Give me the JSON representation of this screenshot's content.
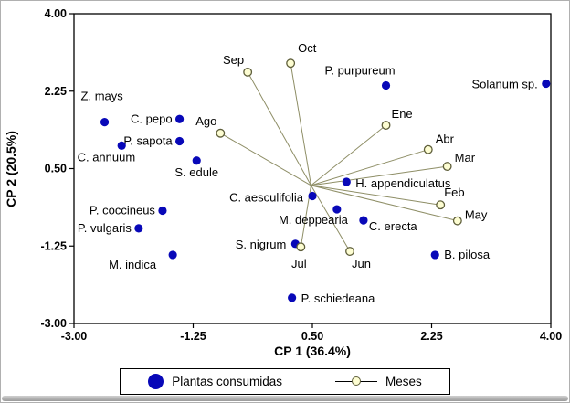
{
  "legend": {
    "plants_label": "Plantas consumidas",
    "months_label": "Meses"
  },
  "colors": {
    "plant": "#0808b8",
    "month_fill": "#fdfdd2",
    "month_stroke": "#5e5e3a",
    "vector_line": "#8e8e66",
    "axis": "#000000"
  },
  "chart_data": {
    "type": "scatter",
    "subtype": "pca-biplot",
    "title": "",
    "xlabel": "CP 1 (36.4%)",
    "ylabel": "CP 2 (20.5%)",
    "xlim": [
      -3,
      4
    ],
    "ylim": [
      -3,
      4
    ],
    "grid": false,
    "legend_position": "bottom",
    "xticks": [
      {
        "value": -3,
        "label": "-3.00"
      },
      {
        "value": -1.25,
        "label": "-1.25"
      },
      {
        "value": 0.5,
        "label": "0.50"
      },
      {
        "value": 2.25,
        "label": "2.25"
      },
      {
        "value": 4,
        "label": "4.00"
      }
    ],
    "yticks": [
      {
        "value": -3,
        "label": "-3.00"
      },
      {
        "value": -1.25,
        "label": "-1.25"
      },
      {
        "value": 0.5,
        "label": "0.50"
      },
      {
        "value": 2.25,
        "label": "2.25"
      },
      {
        "value": 4,
        "label": "4.00"
      }
    ],
    "vector_origin": {
      "x": 0.48,
      "y": 0.12
    },
    "series": [
      {
        "name": "Plantas consumidas",
        "marker": "filled-circle",
        "lines_from_origin": false,
        "points": [
          {
            "label": "Z. mays",
            "x": -2.55,
            "y": 1.55,
            "anchor": "start",
            "dx": -26,
            "dy": -24
          },
          {
            "label": "C. pepo",
            "x": -1.45,
            "y": 1.62,
            "anchor": "end",
            "dx": -8,
            "dy": 4
          },
          {
            "label": "P. sapota",
            "x": -1.45,
            "y": 1.12,
            "anchor": "end",
            "dx": -8,
            "dy": 4
          },
          {
            "label": "C. annuum",
            "x": -2.3,
            "y": 1.02,
            "anchor": "end",
            "dx": 15,
            "dy": 17
          },
          {
            "label": "S. edule",
            "x": -1.2,
            "y": 0.68,
            "anchor": "middle",
            "dx": 0,
            "dy": 17
          },
          {
            "label": "P. coccineus",
            "x": -1.7,
            "y": -0.45,
            "anchor": "end",
            "dx": -8,
            "dy": 4
          },
          {
            "label": "P. vulgaris",
            "x": -2.05,
            "y": -0.85,
            "anchor": "end",
            "dx": -8,
            "dy": 4
          },
          {
            "label": "M. indica",
            "x": -1.55,
            "y": -1.45,
            "anchor": "end",
            "dx": -18,
            "dy": 15
          },
          {
            "label": "C. aesculifolia",
            "x": 0.5,
            "y": -0.12,
            "anchor": "end",
            "dx": -10,
            "dy": 6
          },
          {
            "label": "H. appendiculatus",
            "x": 1.0,
            "y": 0.2,
            "anchor": "start",
            "dx": 10,
            "dy": 6
          },
          {
            "label": "M. deppearia",
            "x": 0.86,
            "y": -0.42,
            "anchor": "end",
            "dx": 12,
            "dy": 16
          },
          {
            "label": "C. erecta",
            "x": 1.25,
            "y": -0.67,
            "anchor": "start",
            "dx": 6,
            "dy": 11
          },
          {
            "label": "S. nigrum",
            "x": 0.25,
            "y": -1.2,
            "anchor": "end",
            "dx": -10,
            "dy": 5
          },
          {
            "label": "B. pilosa",
            "x": 2.3,
            "y": -1.45,
            "anchor": "start",
            "dx": 10,
            "dy": 4
          },
          {
            "label": "P. schiedeana",
            "x": 0.2,
            "y": -2.42,
            "anchor": "start",
            "dx": 10,
            "dy": 5
          },
          {
            "label": "P. purpureum",
            "x": 1.58,
            "y": 2.38,
            "anchor": "end",
            "dx": 10,
            "dy": -12
          },
          {
            "label": "Solanum sp.",
            "x": 3.93,
            "y": 2.42,
            "anchor": "end",
            "dx": -9,
            "dy": 5
          }
        ]
      },
      {
        "name": "Meses",
        "marker": "open-circle",
        "lines_from_origin": true,
        "points": [
          {
            "label": "Ene",
            "x": 1.58,
            "y": 1.48,
            "anchor": "start",
            "dx": 6,
            "dy": -8
          },
          {
            "label": "Feb",
            "x": 2.38,
            "y": -0.32,
            "anchor": "start",
            "dx": 4,
            "dy": -9
          },
          {
            "label": "Mar",
            "x": 2.48,
            "y": 0.55,
            "anchor": "start",
            "dx": 8,
            "dy": -5
          },
          {
            "label": "Abr",
            "x": 2.2,
            "y": 0.93,
            "anchor": "start",
            "dx": 8,
            "dy": -7
          },
          {
            "label": "May",
            "x": 2.63,
            "y": -0.68,
            "anchor": "start",
            "dx": 8,
            "dy": -2
          },
          {
            "label": "Jun",
            "x": 1.05,
            "y": -1.37,
            "anchor": "start",
            "dx": 2,
            "dy": 18
          },
          {
            "label": "Jul",
            "x": 0.33,
            "y": -1.27,
            "anchor": "middle",
            "dx": -2,
            "dy": 23
          },
          {
            "label": "Ago",
            "x": -0.85,
            "y": 1.3,
            "anchor": "end",
            "dx": -4,
            "dy": -9
          },
          {
            "label": "Sep",
            "x": -0.45,
            "y": 2.68,
            "anchor": "end",
            "dx": -4,
            "dy": -9
          },
          {
            "label": "Oct",
            "x": 0.18,
            "y": 2.88,
            "anchor": "start",
            "dx": 8,
            "dy": -12
          }
        ]
      }
    ]
  }
}
